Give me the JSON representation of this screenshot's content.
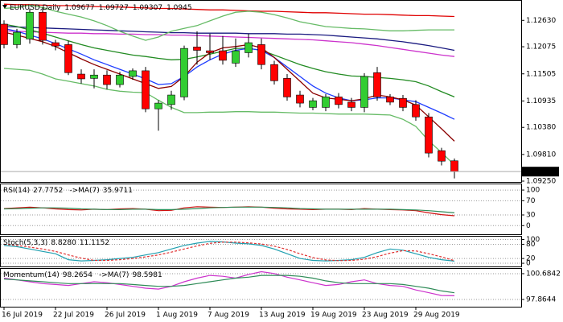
{
  "chart_data": [
    {
      "type": "candlestick",
      "title": "EURUSD,Daily",
      "categories": [
        "16 Jul 2019",
        null,
        null,
        null,
        "22 Jul 2019",
        null,
        null,
        null,
        "26 Jul 2019",
        null,
        null,
        null,
        "1 Aug 2019",
        null,
        null,
        null,
        "7 Aug 2019",
        null,
        null,
        null,
        "13 Aug 2019",
        null,
        null,
        null,
        "19 Aug 2019",
        null,
        null,
        null,
        "23 Aug 2019",
        null,
        null,
        null,
        "29 Aug 2019",
        null,
        null,
        null
      ],
      "open": [
        1.1255,
        1.1212,
        1.1224,
        1.128,
        1.1216,
        1.1212,
        1.115,
        1.1141,
        1.1148,
        1.1128,
        1.1145,
        1.1157,
        1.1077,
        1.1086,
        1.1102,
        1.1207,
        1.1199,
        1.1199,
        1.1173,
        1.1195,
        1.1212,
        1.117,
        1.1141,
        1.1106,
        1.108,
        1.108,
        1.1102,
        1.1091,
        1.108,
        1.1153,
        1.1102,
        1.1099,
        1.1086,
        1.106,
        1.0989,
        1.09677
      ],
      "high": [
        1.1263,
        1.1245,
        1.1288,
        1.129,
        1.1222,
        1.122,
        1.116,
        1.116,
        1.1158,
        1.1155,
        1.1162,
        1.1165,
        1.1095,
        1.1115,
        1.121,
        1.124,
        1.1235,
        1.123,
        1.1225,
        1.1235,
        1.1225,
        1.1178,
        1.115,
        1.1115,
        1.11,
        1.1108,
        1.111,
        1.11,
        1.1152,
        1.1165,
        1.1108,
        1.1106,
        1.1095,
        1.1068,
        1.0995,
        1.09727
      ],
      "low": [
        1.1204,
        1.1204,
        1.1214,
        1.1212,
        1.12,
        1.1148,
        1.113,
        1.112,
        1.1118,
        1.1122,
        1.1138,
        1.107,
        1.1031,
        1.1075,
        1.1095,
        1.117,
        1.118,
        1.117,
        1.1165,
        1.1185,
        1.116,
        1.1128,
        1.1094,
        1.108,
        1.1074,
        1.1072,
        1.1078,
        1.1072,
        1.107,
        1.1094,
        1.1085,
        1.1072,
        1.1052,
        1.0975,
        1.0958,
        1.09307
      ],
      "close": [
        1.1212,
        1.1238,
        1.128,
        1.1221,
        1.1209,
        1.1153,
        1.114,
        1.1148,
        1.1128,
        1.1148,
        1.1157,
        1.1077,
        1.1089,
        1.1106,
        1.1204,
        1.12,
        1.1195,
        1.1179,
        1.1199,
        1.1216,
        1.117,
        1.1136,
        1.1102,
        1.1089,
        1.1094,
        1.1102,
        1.1086,
        1.108,
        1.1145,
        1.1102,
        1.1091,
        1.108,
        1.106,
        1.0984,
        1.0967,
        1.0945
      ],
      "up_color": "#32cd32",
      "down_color": "#ff0000",
      "series": [
        {
          "color": "#e00000",
          "values": [
            1.1297,
            1.1296,
            1.1296,
            1.1295,
            1.1294,
            1.1294,
            1.1293,
            1.1292,
            1.1291,
            1.1291,
            1.129,
            1.1289,
            1.1288,
            1.1288,
            1.1287,
            1.1286,
            1.1285,
            1.1285,
            1.1284,
            1.1283,
            1.1282,
            1.1282,
            1.1281,
            1.128,
            1.1279,
            1.1279,
            1.1278,
            1.1277,
            1.1276,
            1.1276,
            1.1275,
            1.1274,
            1.1273,
            1.1273,
            1.1272,
            1.1271
          ]
        },
        {
          "color": "#1a1a80",
          "values": [
            1.125,
            1.1249,
            1.1248,
            1.1247,
            1.1246,
            1.1245,
            1.1244,
            1.1243,
            1.1242,
            1.1241,
            1.124,
            1.1239,
            1.1238,
            1.1237,
            1.1237,
            1.1236,
            1.1236,
            1.1236,
            1.1236,
            1.1235,
            1.1235,
            1.1235,
            1.1234,
            1.1234,
            1.1233,
            1.1232,
            1.123,
            1.1228,
            1.1226,
            1.1224,
            1.1221,
            1.1218,
            1.1214,
            1.121,
            1.1205,
            1.12
          ]
        },
        {
          "color": "#cc33cc",
          "values": [
            1.1241,
            1.124,
            1.1239,
            1.1238,
            1.1237,
            1.1236,
            1.1236,
            1.1235,
            1.1235,
            1.1234,
            1.1234,
            1.1233,
            1.1233,
            1.1232,
            1.1232,
            1.1231,
            1.123,
            1.1229,
            1.1228,
            1.1227,
            1.1226,
            1.1225,
            1.1224,
            1.1223,
            1.1222,
            1.122,
            1.1218,
            1.1216,
            1.1213,
            1.121,
            1.1206,
            1.1202,
            1.1198,
            1.1194,
            1.119,
            1.1187
          ]
        },
        {
          "color": "#66bb66",
          "values": [
            1.1288,
            1.129,
            1.1295,
            1.129,
            1.1282,
            1.1276,
            1.127,
            1.1262,
            1.1252,
            1.124,
            1.123,
            1.1221,
            1.1228,
            1.124,
            1.1246,
            1.1252,
            1.1262,
            1.1272,
            1.128,
            1.1282,
            1.128,
            1.1275,
            1.1268,
            1.126,
            1.1255,
            1.125,
            1.1248,
            1.1246,
            1.1245,
            1.1243,
            1.1241,
            1.1241,
            1.1242,
            1.1243,
            1.1243,
            1.1243
          ]
        },
        {
          "color": "#66bb66",
          "values": [
            1.1162,
            1.116,
            1.1158,
            1.115,
            1.114,
            1.1135,
            1.113,
            1.1125,
            1.1118,
            1.1114,
            1.1112,
            1.1111,
            1.1095,
            1.108,
            1.1069,
            1.1069,
            1.107,
            1.107,
            1.1071,
            1.1071,
            1.107,
            1.107,
            1.1069,
            1.1068,
            1.1068,
            1.1067,
            1.1066,
            1.1066,
            1.1066,
            1.1065,
            1.1064,
            1.1055,
            1.104,
            1.101,
            1.0985,
            1.0959
          ]
        },
        {
          "color": "#228b22",
          "values": [
            1.1255,
            1.125,
            1.1243,
            1.1236,
            1.1228,
            1.122,
            1.1212,
            1.1205,
            1.12,
            1.1195,
            1.119,
            1.1187,
            1.1183,
            1.118,
            1.1181,
            1.1186,
            1.1192,
            1.1198,
            1.1204,
            1.1204,
            1.12,
            1.119,
            1.118,
            1.117,
            1.1162,
            1.1155,
            1.115,
            1.1146,
            1.1145,
            1.1143,
            1.1141,
            1.1138,
            1.1134,
            1.1125,
            1.1113,
            1.1102
          ]
        },
        {
          "color": "#1e3cff",
          "values": [
            1.1246,
            1.124,
            1.1232,
            1.1224,
            1.1214,
            1.1203,
            1.1192,
            1.118,
            1.117,
            1.116,
            1.115,
            1.114,
            1.1128,
            1.113,
            1.1145,
            1.1165,
            1.118,
            1.1192,
            1.12,
            1.1204,
            1.12,
            1.1185,
            1.1165,
            1.1145,
            1.1125,
            1.111,
            1.11,
            1.1094,
            1.1096,
            1.11,
            1.11,
            1.1096,
            1.1092,
            1.108,
            1.1068,
            1.1055
          ]
        },
        {
          "color": "#8b0000",
          "values": [
            1.1238,
            1.1232,
            1.1225,
            1.1218,
            1.1208,
            1.1195,
            1.1182,
            1.117,
            1.116,
            1.115,
            1.114,
            1.113,
            1.112,
            1.1124,
            1.1145,
            1.1175,
            1.1195,
            1.1205,
            1.1208,
            1.1212,
            1.1205,
            1.1185,
            1.116,
            1.1135,
            1.111,
            1.11,
            1.1097,
            1.1094,
            1.1098,
            1.1106,
            1.1102,
            1.1096,
            1.1085,
            1.106,
            1.1035,
            1.1009
          ]
        }
      ],
      "ylim": [
        1.0925,
        1.1299
      ],
      "yticks": [
        {
          "value": 1.1263,
          "label": "1.12630"
        },
        1.12075,
        1.11505,
        1.10935,
        {
          "value": 1.1038,
          "label": "1.10380"
        },
        {
          "value": 1.0981,
          "label": "1.09810"
        },
        {
          "value": 1.0925,
          "label": "1.09250"
        }
      ],
      "last_price": {
        "value": 1.0945,
        "label": "1.09450"
      },
      "grid": false
    },
    {
      "type": "line",
      "title": "RSI(14)",
      "series": [
        {
          "name": "RSI(14)",
          "color": "#d01010",
          "values": [
            48,
            50,
            52,
            50,
            47,
            45,
            44,
            46,
            45,
            47,
            48,
            46,
            42,
            43,
            50,
            53,
            52,
            51,
            52,
            53,
            52,
            49,
            47,
            46,
            45,
            46,
            46,
            45,
            48,
            46,
            45,
            44,
            42,
            36,
            31,
            27.7752
          ]
        },
        {
          "name": "->MA(7)",
          "color": "#2e8b57",
          "values": [
            47,
            48,
            49,
            50,
            50,
            49,
            47,
            46,
            45,
            45,
            46,
            46,
            45,
            45,
            46,
            48,
            50,
            51,
            52,
            52,
            52,
            51,
            50,
            48,
            47,
            46,
            46,
            46,
            46,
            46,
            46,
            45,
            44,
            42,
            39,
            35.9711
          ]
        }
      ],
      "ylim": [
        -22,
        116
      ],
      "yticks": [
        100,
        70,
        30,
        0
      ],
      "grid": true
    },
    {
      "type": "line",
      "title": "Stoch(5,3,3)",
      "series": [
        {
          "color": "#20a0b0",
          "style": "solid",
          "values": [
            75,
            70,
            60,
            50,
            40,
            15,
            10,
            12,
            15,
            20,
            25,
            35,
            45,
            60,
            75,
            85,
            92,
            90,
            85,
            82,
            75,
            60,
            40,
            20,
            12,
            10,
            12,
            15,
            25,
            45,
            60,
            55,
            40,
            25,
            15,
            8.828
          ],
          "last_label": "8.8280"
        },
        {
          "color": "#e03030",
          "style": "dashed",
          "values": [
            80,
            75,
            68,
            60,
            50,
            35,
            22,
            12,
            12,
            15,
            20,
            27,
            35,
            47,
            60,
            73,
            84,
            89,
            89,
            86,
            81,
            72,
            58,
            40,
            24,
            14,
            11,
            12,
            17,
            28,
            43,
            53,
            52,
            40,
            27,
            11.1152
          ]
        }
      ],
      "ylim": [
        -10,
        112
      ],
      "yticks": [
        100,
        80,
        20,
        0
      ],
      "grid": true
    },
    {
      "type": "line",
      "title": "Momentum(14)",
      "series": [
        {
          "name": "Momentum(14)",
          "color": "#cc33cc",
          "values": [
            100.2,
            100.0,
            99.8,
            99.6,
            99.5,
            99.4,
            99.6,
            99.8,
            99.7,
            99.5,
            99.3,
            99.1,
            99.0,
            99.3,
            99.8,
            100.2,
            100.5,
            100.4,
            100.2,
            100.6,
            100.9,
            100.7,
            100.3,
            100.0,
            99.7,
            99.4,
            99.5,
            99.8,
            100.0,
            99.6,
            99.4,
            99.3,
            98.9,
            98.6,
            98.3,
            98.2654
          ]
        },
        {
          "name": "->MA(7)",
          "color": "#2e8b57",
          "values": [
            100.1,
            100.0,
            99.9,
            99.8,
            99.7,
            99.6,
            99.6,
            99.6,
            99.6,
            99.6,
            99.5,
            99.4,
            99.3,
            99.3,
            99.4,
            99.6,
            99.8,
            100.0,
            100.2,
            100.3,
            100.5,
            100.5,
            100.5,
            100.4,
            100.2,
            99.9,
            99.7,
            99.6,
            99.6,
            99.6,
            99.6,
            99.5,
            99.3,
            99.1,
            98.8,
            98.5981
          ]
        }
      ],
      "ylim": [
        97.16,
        101.21
      ],
      "yticks": [
        100.6842,
        97.8644
      ],
      "grid": true
    }
  ]
}
